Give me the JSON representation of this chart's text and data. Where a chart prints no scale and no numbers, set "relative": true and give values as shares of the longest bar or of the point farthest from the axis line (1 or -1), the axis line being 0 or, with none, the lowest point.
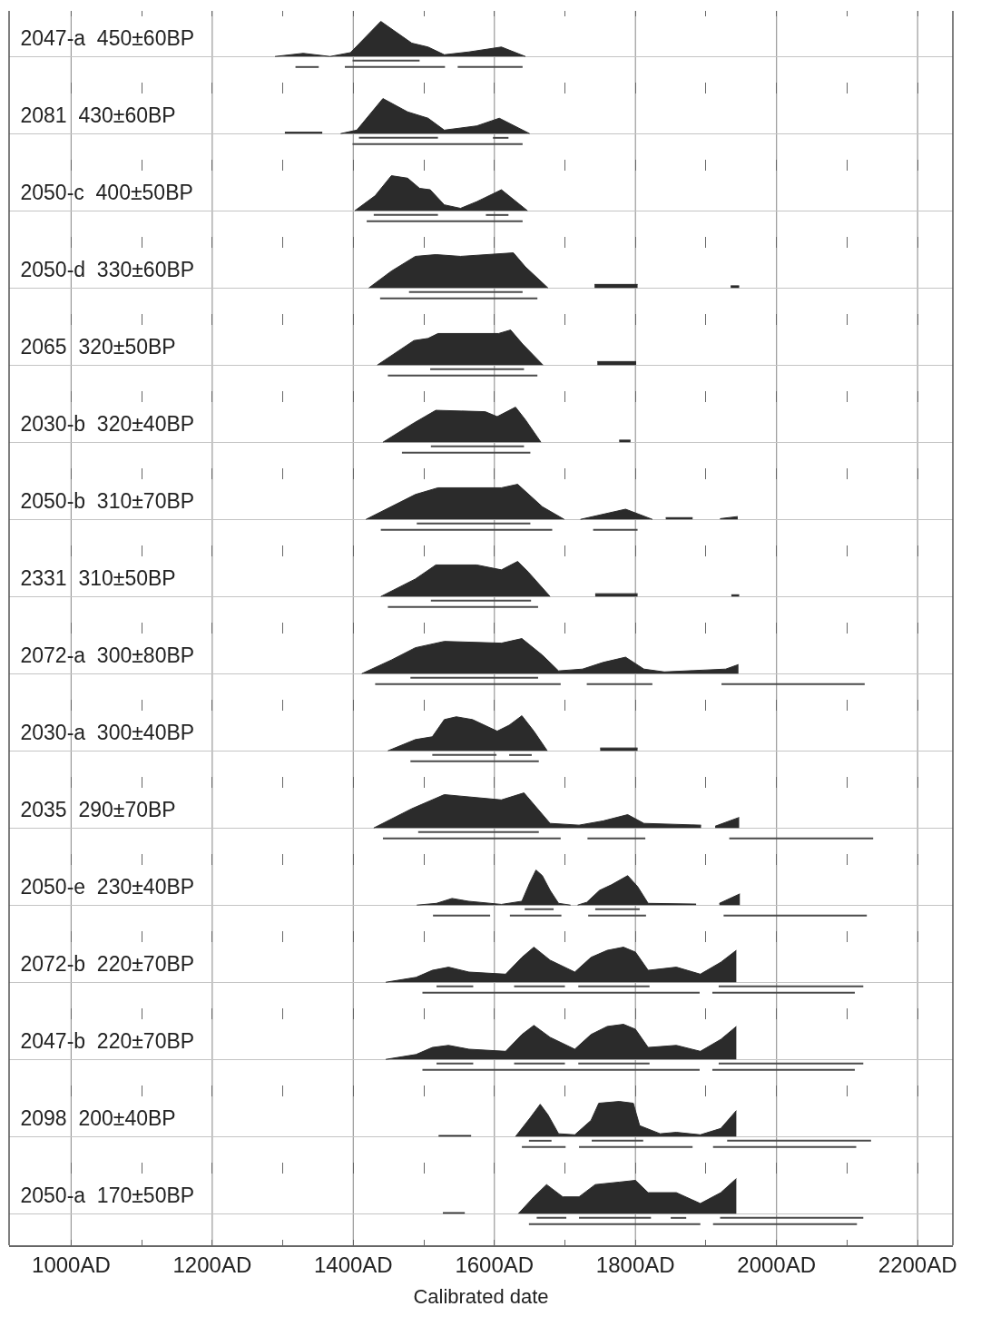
{
  "chart_data": [
    {
      "type": "area",
      "relative": true,
      "title": "2047-a  450±60BP",
      "tick_labels": false,
      "grid": "x",
      "xlim": [
        912,
        2250
      ],
      "xticks": [
        1000,
        {
          "value": 1100,
          "label": null
        },
        1200,
        {
          "value": 1300,
          "label": null
        },
        1400,
        {
          "value": 1500,
          "label": null
        },
        1600,
        {
          "value": 1700,
          "label": null
        },
        1800,
        {
          "value": 1900,
          "label": null
        },
        2000,
        {
          "value": 2100,
          "label": null
        },
        2200
      ],
      "series": [
        {
          "color": "#2b2b2b",
          "x": [
            1289,
            1329,
            1367,
            1396,
            1439,
            1483,
            1506,
            1529,
            1564,
            1610,
            1644
          ],
          "values": [
            0,
            0.09,
            0,
            0.11,
            1,
            0.38,
            0.27,
            0.05,
            0.13,
            0.27,
            0
          ]
        },
        {
          "type": "line",
          "color": "#4a4a4a",
          "x": [
            1399,
            1494
          ],
          "values": [
            -0.12,
            -0.12
          ]
        },
        {
          "type": "line",
          "color": "#4a4a4a",
          "x": [
            1318,
            1351,
            null,
            1388,
            1530,
            null,
            1548,
            1640
          ],
          "values": [
            -0.3,
            -0.3,
            null,
            -0.3,
            -0.3,
            null,
            -0.3,
            -0.3
          ]
        }
      ]
    },
    {
      "type": "area",
      "relative": true,
      "title": "2081  430±60BP",
      "tick_labels": false,
      "grid": "x",
      "xlim": [
        912,
        2250
      ],
      "xticks": [
        1000,
        {
          "value": 1100,
          "label": null
        },
        1200,
        {
          "value": 1300,
          "label": null
        },
        1400,
        {
          "value": 1500,
          "label": null
        },
        1600,
        {
          "value": 1700,
          "label": null
        },
        1800,
        {
          "value": 1900,
          "label": null
        },
        2000,
        {
          "value": 2100,
          "label": null
        },
        2200
      ],
      "series": [
        {
          "color": "#2b2b2b",
          "x": [
            1303,
            1356,
            null,
            1382,
            1405,
            1442,
            1477,
            1506,
            1529,
            1575,
            1607,
            1650
          ],
          "values": [
            0.04,
            0.04,
            null,
            0,
            0.1,
            1,
            0.62,
            0.44,
            0.1,
            0.22,
            0.44,
            0
          ]
        },
        {
          "type": "line",
          "color": "#4a4a4a",
          "x": [
            1408,
            1520,
            null,
            1598,
            1620
          ],
          "values": [
            -0.12,
            -0.12,
            null,
            -0.12,
            -0.12
          ]
        },
        {
          "type": "line",
          "color": "#4a4a4a",
          "x": [
            1399,
            1640
          ],
          "values": [
            -0.3,
            -0.3
          ]
        }
      ]
    },
    {
      "type": "area",
      "relative": true,
      "title": "2050-c  400±50BP",
      "tick_labels": false,
      "grid": "x",
      "xlim": [
        912,
        2250
      ],
      "xticks": [
        1000,
        {
          "value": 1100,
          "label": null
        },
        1200,
        {
          "value": 1300,
          "label": null
        },
        1400,
        {
          "value": 1500,
          "label": null
        },
        1600,
        {
          "value": 1700,
          "label": null
        },
        1800,
        {
          "value": 1900,
          "label": null
        },
        2000,
        {
          "value": 2100,
          "label": null
        },
        2200
      ],
      "series": [
        {
          "color": "#2b2b2b",
          "x": [
            1402,
            1431,
            1454,
            1477,
            1494,
            1509,
            1529,
            1552,
            1575,
            1610,
            1647
          ],
          "values": [
            0,
            0.43,
            1,
            0.93,
            0.64,
            0.6,
            0.17,
            0.07,
            0.26,
            0.6,
            0
          ]
        },
        {
          "type": "line",
          "color": "#4a4a4a",
          "x": [
            1429,
            1520,
            null,
            1588,
            1620
          ],
          "values": [
            -0.12,
            -0.12,
            null,
            -0.12,
            -0.12
          ]
        },
        {
          "type": "line",
          "color": "#4a4a4a",
          "x": [
            1419,
            1640
          ],
          "values": [
            -0.3,
            -0.3
          ]
        }
      ]
    },
    {
      "type": "area",
      "relative": true,
      "title": "2050-d  330±60BP",
      "tick_labels": false,
      "grid": "x",
      "xlim": [
        912,
        2250
      ],
      "xticks": [
        1000,
        {
          "value": 1100,
          "label": null
        },
        1200,
        {
          "value": 1300,
          "label": null
        },
        1400,
        {
          "value": 1500,
          "label": null
        },
        1600,
        {
          "value": 1700,
          "label": null
        },
        1800,
        {
          "value": 1900,
          "label": null
        },
        2000,
        {
          "value": 2100,
          "label": null
        },
        2200
      ],
      "series": [
        {
          "color": "#2b2b2b",
          "x": [
            1422,
            1454,
            1488,
            1517,
            1552,
            1627,
            1644,
            1676,
            null,
            1742,
            1803,
            null,
            1935,
            1947
          ],
          "values": [
            0,
            0.48,
            0.9,
            0.95,
            0.9,
            1,
            0.6,
            0,
            null,
            0.1,
            0.1,
            null,
            0.06,
            0.06
          ]
        },
        {
          "type": "line",
          "color": "#4a4a4a",
          "x": [
            1479,
            1640
          ],
          "values": [
            -0.12,
            -0.12
          ]
        },
        {
          "type": "line",
          "color": "#4a4a4a",
          "x": [
            1438,
            1661
          ],
          "values": [
            -0.3,
            -0.3
          ]
        }
      ]
    },
    {
      "type": "area",
      "relative": true,
      "title": "2065  320±50BP",
      "tick_labels": false,
      "grid": "x",
      "xlim": [
        912,
        2250
      ],
      "xticks": [
        1000,
        {
          "value": 1100,
          "label": null
        },
        1200,
        {
          "value": 1300,
          "label": null
        },
        1400,
        {
          "value": 1500,
          "label": null
        },
        1600,
        {
          "value": 1700,
          "label": null
        },
        1800,
        {
          "value": 1900,
          "label": null
        },
        2000,
        {
          "value": 2100,
          "label": null
        },
        2200
      ],
      "series": [
        {
          "color": "#2b2b2b",
          "x": [
            1434,
            1486,
            1506,
            1520,
            1606,
            1623,
            1640,
            1669,
            null,
            1746,
            1801
          ],
          "values": [
            0,
            0.7,
            0.76,
            0.9,
            0.9,
            1,
            0.6,
            0,
            null,
            0.1,
            0.1
          ]
        },
        {
          "type": "line",
          "color": "#4a4a4a",
          "x": [
            1509,
            1642
          ],
          "values": [
            -0.12,
            -0.12
          ]
        },
        {
          "type": "line",
          "color": "#4a4a4a",
          "x": [
            1449,
            1661
          ],
          "values": [
            -0.3,
            -0.3
          ]
        }
      ]
    },
    {
      "type": "area",
      "relative": true,
      "title": "2030-b  320±40BP",
      "tick_labels": false,
      "grid": "x",
      "xlim": [
        912,
        2250
      ],
      "xticks": [
        1000,
        {
          "value": 1100,
          "label": null
        },
        1200,
        {
          "value": 1300,
          "label": null
        },
        1400,
        {
          "value": 1500,
          "label": null
        },
        1600,
        {
          "value": 1700,
          "label": null
        },
        1800,
        {
          "value": 1900,
          "label": null
        },
        2000,
        {
          "value": 2100,
          "label": null
        },
        2200
      ],
      "series": [
        {
          "color": "#2b2b2b",
          "x": [
            1442,
            1486,
            1517,
            1587,
            1604,
            1630,
            1644,
            1666,
            null,
            1777,
            1793
          ],
          "values": [
            0,
            0.55,
            0.91,
            0.87,
            0.73,
            1,
            0.64,
            0,
            null,
            0.06,
            0.06
          ]
        },
        {
          "type": "line",
          "color": "#4a4a4a",
          "x": [
            1510,
            1642
          ],
          "values": [
            -0.12,
            -0.12
          ]
        },
        {
          "type": "line",
          "color": "#4a4a4a",
          "x": [
            1469,
            1651
          ],
          "values": [
            -0.3,
            -0.3
          ]
        }
      ]
    },
    {
      "type": "area",
      "relative": true,
      "title": "2050-b  310±70BP",
      "tick_labels": false,
      "grid": "x",
      "xlim": [
        912,
        2250
      ],
      "xticks": [
        1000,
        {
          "value": 1100,
          "label": null
        },
        1200,
        {
          "value": 1300,
          "label": null
        },
        1400,
        {
          "value": 1500,
          "label": null
        },
        1600,
        {
          "value": 1700,
          "label": null
        },
        1800,
        {
          "value": 1900,
          "label": null
        },
        2000,
        {
          "value": 2100,
          "label": null
        },
        2200
      ],
      "series": [
        {
          "color": "#2b2b2b",
          "x": [
            1418,
            1488,
            1520,
            1610,
            1633,
            1668,
            1699,
            null,
            1722,
            1786,
            1824,
            null,
            1843,
            1881,
            null,
            1920,
            1945
          ],
          "values": [
            0,
            0.71,
            0.9,
            0.9,
            1,
            0.36,
            0,
            null,
            0,
            0.29,
            0,
            null,
            0.05,
            0.05,
            null,
            0.02,
            0.08
          ]
        },
        {
          "type": "line",
          "color": "#4a4a4a",
          "x": [
            1490,
            1651
          ],
          "values": [
            -0.12,
            -0.12
          ]
        },
        {
          "type": "line",
          "color": "#4a4a4a",
          "x": [
            1439,
            1682,
            null,
            1740,
            1803
          ],
          "values": [
            -0.3,
            -0.3,
            null,
            -0.3,
            -0.3
          ]
        }
      ]
    },
    {
      "type": "area",
      "relative": true,
      "title": "2331  310±50BP",
      "tick_labels": false,
      "grid": "x",
      "xlim": [
        912,
        2250
      ],
      "xticks": [
        1000,
        {
          "value": 1100,
          "label": null
        },
        1200,
        {
          "value": 1300,
          "label": null
        },
        1400,
        {
          "value": 1500,
          "label": null
        },
        1600,
        {
          "value": 1700,
          "label": null
        },
        1800,
        {
          "value": 1900,
          "label": null
        },
        2000,
        {
          "value": 2100,
          "label": null
        },
        2200
      ],
      "series": [
        {
          "color": "#2b2b2b",
          "x": [
            1439,
            1488,
            1517,
            1575,
            1610,
            1633,
            1648,
            1679,
            null,
            1743,
            1803,
            null,
            1936,
            1947
          ],
          "values": [
            0,
            0.5,
            0.9,
            0.9,
            0.76,
            1,
            0.7,
            0,
            null,
            0.08,
            0.08,
            null,
            0.05,
            0.05
          ]
        },
        {
          "type": "line",
          "color": "#4a4a4a",
          "x": [
            1510,
            1652
          ],
          "values": [
            -0.12,
            -0.12
          ]
        },
        {
          "type": "line",
          "color": "#4a4a4a",
          "x": [
            1449,
            1662
          ],
          "values": [
            -0.3,
            -0.3
          ]
        }
      ]
    },
    {
      "type": "area",
      "relative": true,
      "title": "2072-a  300±80BP",
      "tick_labels": false,
      "grid": "x",
      "xlim": [
        912,
        2250
      ],
      "xticks": [
        1000,
        {
          "value": 1100,
          "label": null
        },
        1200,
        {
          "value": 1300,
          "label": null
        },
        1400,
        {
          "value": 1500,
          "label": null
        },
        1600,
        {
          "value": 1700,
          "label": null
        },
        1800,
        {
          "value": 1900,
          "label": null
        },
        2000,
        {
          "value": 2100,
          "label": null
        },
        2200
      ],
      "series": [
        {
          "color": "#2b2b2b",
          "x": [
            1412,
            1454,
            1488,
            1529,
            1610,
            1639,
            1668,
            1691,
            1725,
            1754,
            1786,
            1812,
            1841,
            1928,
            1946
          ],
          "values": [
            0,
            0.39,
            0.74,
            0.92,
            0.87,
            1,
            0.53,
            0.08,
            0.13,
            0.32,
            0.47,
            0.13,
            0.05,
            0.13,
            0.26
          ]
        },
        {
          "type": "line",
          "color": "#4a4a4a",
          "x": [
            1481,
            1662
          ],
          "values": [
            -0.12,
            -0.12
          ]
        },
        {
          "type": "line",
          "color": "#4a4a4a",
          "x": [
            1431,
            1694,
            null,
            1731,
            1824,
            null,
            1922,
            2125
          ],
          "values": [
            -0.3,
            -0.3,
            null,
            -0.3,
            -0.3,
            null,
            -0.3,
            -0.3
          ]
        }
      ]
    },
    {
      "type": "area",
      "relative": true,
      "title": "2030-a  300±40BP",
      "tick_labels": false,
      "grid": "x",
      "xlim": [
        912,
        2250
      ],
      "xticks": [
        1000,
        {
          "value": 1100,
          "label": null
        },
        1200,
        {
          "value": 1300,
          "label": null
        },
        1400,
        {
          "value": 1500,
          "label": null
        },
        1600,
        {
          "value": 1700,
          "label": null
        },
        1800,
        {
          "value": 1900,
          "label": null
        },
        2000,
        {
          "value": 2100,
          "label": null
        },
        2200
      ],
      "series": [
        {
          "color": "#2b2b2b",
          "x": [
            1449,
            1488,
            1512,
            1529,
            1546,
            1569,
            1604,
            1621,
            1639,
            1656,
            1675,
            null,
            1750,
            1803
          ],
          "values": [
            0,
            0.32,
            0.4,
            0.89,
            0.97,
            0.89,
            0.56,
            0.73,
            1,
            0.56,
            0,
            null,
            0.08,
            0.08
          ]
        },
        {
          "type": "line",
          "color": "#4a4a4a",
          "x": [
            1512,
            1603,
            null,
            1621,
            1653
          ],
          "values": [
            -0.12,
            -0.12,
            null,
            -0.12,
            -0.12
          ]
        },
        {
          "type": "line",
          "color": "#4a4a4a",
          "x": [
            1481,
            1663
          ],
          "values": [
            -0.3,
            -0.3
          ]
        }
      ]
    },
    {
      "type": "area",
      "relative": true,
      "title": "2035  290±70BP",
      "tick_labels": false,
      "grid": "x",
      "xlim": [
        912,
        2250
      ],
      "xticks": [
        1000,
        {
          "value": 1100,
          "label": null
        },
        1200,
        {
          "value": 1300,
          "label": null
        },
        1400,
        {
          "value": 1500,
          "label": null
        },
        1600,
        {
          "value": 1700,
          "label": null
        },
        1800,
        {
          "value": 1900,
          "label": null
        },
        2000,
        {
          "value": 2100,
          "label": null
        },
        2200
      ],
      "series": [
        {
          "color": "#2b2b2b",
          "x": [
            1429,
            1483,
            1529,
            1610,
            1642,
            1679,
            1720,
            1754,
            1789,
            1812,
            1893,
            null,
            1913,
            1947
          ],
          "values": [
            0,
            0.55,
            0.95,
            0.8,
            1,
            0.13,
            0.08,
            0.2,
            0.38,
            0.13,
            0.08,
            null,
            0.05,
            0.3
          ]
        },
        {
          "type": "line",
          "color": "#4a4a4a",
          "x": [
            1492,
            1663
          ],
          "values": [
            -0.12,
            -0.12
          ]
        },
        {
          "type": "line",
          "color": "#4a4a4a",
          "x": [
            1442,
            1694,
            null,
            1732,
            1814,
            null,
            1933,
            2137
          ],
          "values": [
            -0.3,
            -0.3,
            null,
            -0.3,
            -0.3,
            null,
            -0.3,
            -0.3
          ]
        }
      ]
    },
    {
      "type": "area",
      "relative": true,
      "title": "2050-e  230±40BP",
      "tick_labels": false,
      "grid": "x",
      "xlim": [
        912,
        2250
      ],
      "xticks": [
        1000,
        {
          "value": 1100,
          "label": null
        },
        1200,
        {
          "value": 1300,
          "label": null
        },
        1400,
        {
          "value": 1500,
          "label": null
        },
        1600,
        {
          "value": 1700,
          "label": null
        },
        1800,
        {
          "value": 1900,
          "label": null
        },
        2000,
        {
          "value": 2100,
          "label": null
        },
        2200
      ],
      "series": [
        {
          "color": "#2b2b2b",
          "x": [
            1490,
            1518,
            1540,
            1563,
            1610,
            1639,
            1650,
            1659,
            1668,
            1679,
            1691,
            1708,
            null,
            1718,
            1731,
            1749,
            1766,
            1789,
            1803,
            1818,
            1886,
            null,
            1919,
            1948
          ],
          "values": [
            0,
            0.05,
            0.19,
            0.11,
            0.02,
            0.11,
            0.63,
            1,
            0.84,
            0.42,
            0.05,
            0,
            null,
            0,
            0.08,
            0.42,
            0.58,
            0.84,
            0.53,
            0.05,
            0.03,
            null,
            0.05,
            0.32
          ]
        },
        {
          "type": "line",
          "color": "#4a4a4a",
          "x": [
            1643,
            1684,
            null,
            1743,
            1806
          ],
          "values": [
            -0.12,
            -0.12,
            null,
            -0.12,
            -0.12
          ]
        },
        {
          "type": "line",
          "color": "#4a4a4a",
          "x": [
            1513,
            1594,
            null,
            1622,
            1695,
            null,
            1733,
            1815,
            null,
            1925,
            2128
          ],
          "values": [
            -0.3,
            -0.3,
            null,
            -0.3,
            -0.3,
            null,
            -0.3,
            -0.3,
            null,
            -0.3,
            -0.3
          ]
        }
      ]
    },
    {
      "type": "area",
      "relative": true,
      "title": "2072-b  220±70BP",
      "tick_labels": false,
      "grid": "x",
      "xlim": [
        912,
        2250
      ],
      "xticks": [
        1000,
        {
          "value": 1100,
          "label": null
        },
        1200,
        {
          "value": 1300,
          "label": null
        },
        1400,
        {
          "value": 1500,
          "label": null
        },
        1600,
        {
          "value": 1700,
          "label": null
        },
        1800,
        {
          "value": 1900,
          "label": null
        },
        2000,
        {
          "value": 2100,
          "label": null
        },
        2200
      ],
      "series": [
        {
          "color": "#2b2b2b",
          "x": [
            1446,
            1489,
            1512,
            1535,
            1564,
            1616,
            1639,
            1656,
            1679,
            1714,
            1737,
            1760,
            1783,
            1800,
            1818,
            1858,
            1892,
            1921,
            1943
          ],
          "values": [
            0,
            0.14,
            0.34,
            0.43,
            0.29,
            0.23,
            0.71,
            1,
            0.63,
            0.29,
            0.71,
            0.91,
            1,
            0.86,
            0.34,
            0.43,
            0.23,
            0.57,
            0.91
          ]
        },
        {
          "type": "line",
          "color": "#4a4a4a",
          "x": [
            1518,
            1570,
            null,
            1628,
            1700,
            null,
            1719,
            1820,
            null,
            1918,
            2123
          ],
          "values": [
            -0.12,
            -0.12,
            null,
            -0.12,
            -0.12,
            null,
            -0.12,
            -0.12,
            null,
            -0.12,
            -0.12
          ]
        },
        {
          "type": "line",
          "color": "#4a4a4a",
          "x": [
            1498,
            1891,
            null,
            1909,
            2111
          ],
          "values": [
            -0.3,
            -0.3,
            null,
            -0.3,
            -0.3
          ]
        }
      ]
    },
    {
      "type": "area",
      "relative": true,
      "title": "2047-b  220±70BP",
      "tick_labels": false,
      "grid": "x",
      "xlim": [
        912,
        2250
      ],
      "xticks": [
        1000,
        {
          "value": 1100,
          "label": null
        },
        1200,
        {
          "value": 1300,
          "label": null
        },
        1400,
        {
          "value": 1500,
          "label": null
        },
        1600,
        {
          "value": 1700,
          "label": null
        },
        1800,
        {
          "value": 1900,
          "label": null
        },
        2000,
        {
          "value": 2100,
          "label": null
        },
        2200
      ],
      "series": [
        {
          "color": "#2b2b2b",
          "x": [
            1446,
            1489,
            1512,
            1535,
            1564,
            1616,
            1639,
            1656,
            1679,
            1714,
            1737,
            1760,
            1783,
            1800,
            1818,
            1858,
            1892,
            1921,
            1943
          ],
          "values": [
            0,
            0.14,
            0.34,
            0.4,
            0.29,
            0.23,
            0.71,
            0.97,
            0.63,
            0.29,
            0.71,
            0.94,
            1,
            0.86,
            0.34,
            0.4,
            0.23,
            0.57,
            0.94
          ]
        },
        {
          "type": "line",
          "color": "#4a4a4a",
          "x": [
            1518,
            1570,
            null,
            1628,
            1700,
            null,
            1719,
            1820,
            null,
            1918,
            2123
          ],
          "values": [
            -0.12,
            -0.12,
            null,
            -0.12,
            -0.12,
            null,
            -0.12,
            -0.12,
            null,
            -0.12,
            -0.12
          ]
        },
        {
          "type": "line",
          "color": "#4a4a4a",
          "x": [
            1498,
            1891,
            null,
            1909,
            2111
          ],
          "values": [
            -0.3,
            -0.3,
            null,
            -0.3,
            -0.3
          ]
        }
      ]
    },
    {
      "type": "area",
      "relative": true,
      "title": "2098  200±40BP",
      "tick_labels": false,
      "grid": "x",
      "xlim": [
        912,
        2250
      ],
      "xticks": [
        1000,
        {
          "value": 1100,
          "label": null
        },
        1200,
        {
          "value": 1300,
          "label": null
        },
        1400,
        {
          "value": 1500,
          "label": null
        },
        1600,
        {
          "value": 1700,
          "label": null
        },
        1800,
        {
          "value": 1900,
          "label": null
        },
        2000,
        {
          "value": 2100,
          "label": null
        },
        2200
      ],
      "series": [
        {
          "color": "#2b2b2b",
          "x": [
            1521,
            1567,
            null,
            1630,
            1651,
            1665,
            1676,
            1691,
            1714,
            1737,
            1748,
            1777,
            1797,
            1806,
            1835,
            1858,
            1892,
            1921,
            1943
          ],
          "values": [
            0.03,
            0.03,
            null,
            0,
            0.54,
            0.92,
            0.62,
            0.08,
            0.05,
            0.46,
            0.95,
            1,
            0.95,
            0.31,
            0.08,
            0.12,
            0.05,
            0.23,
            0.74
          ]
        },
        {
          "type": "line",
          "color": "#4a4a4a",
          "x": [
            1649,
            1681,
            null,
            1738,
            1811,
            null,
            1930,
            2134
          ],
          "values": [
            -0.12,
            -0.12,
            null,
            -0.12,
            -0.12,
            null,
            -0.12,
            -0.12
          ]
        },
        {
          "type": "line",
          "color": "#4a4a4a",
          "x": [
            1639,
            1701,
            null,
            1720,
            1881,
            null,
            1910,
            2113
          ],
          "values": [
            -0.3,
            -0.3,
            null,
            -0.3,
            -0.3,
            null,
            -0.3,
            -0.3
          ]
        }
      ]
    },
    {
      "type": "area",
      "relative": true,
      "title": "2050-a  170±50BP",
      "xlabel": "Calibrated date",
      "tick_labels": "x",
      "grid": "x",
      "xlim": [
        912,
        2250
      ],
      "xticks": [
        {
          "value": 1000,
          "label": "1000AD"
        },
        {
          "value": 1100,
          "label": null
        },
        {
          "value": 1200,
          "label": "1200AD"
        },
        {
          "value": 1300,
          "label": null
        },
        {
          "value": 1400,
          "label": "1400AD"
        },
        {
          "value": 1500,
          "label": null
        },
        {
          "value": 1600,
          "label": "1600AD"
        },
        {
          "value": 1700,
          "label": null
        },
        {
          "value": 1800,
          "label": "1800AD"
        },
        {
          "value": 1900,
          "label": null
        },
        {
          "value": 2000,
          "label": "2000AD"
        },
        {
          "value": 2100,
          "label": null
        },
        {
          "value": 2200,
          "label": "2200AD"
        }
      ],
      "series": [
        {
          "color": "#2b2b2b",
          "x": [
            1527,
            1558,
            null,
            1634,
            1656,
            1674,
            1697,
            1720,
            1743,
            1777,
            1800,
            1818,
            1858,
            1892,
            1921,
            1943
          ],
          "values": [
            0.03,
            0.03,
            null,
            0,
            0.48,
            0.83,
            0.48,
            0.48,
            0.83,
            0.9,
            0.95,
            0.6,
            0.6,
            0.29,
            0.6,
            1
          ]
        },
        {
          "type": "line",
          "color": "#4a4a4a",
          "x": [
            1660,
            1702,
            null,
            1720,
            1822,
            null,
            1850,
            1872,
            null,
            1920,
            2123
          ],
          "values": [
            -0.12,
            -0.12,
            null,
            -0.12,
            -0.12,
            null,
            -0.12,
            -0.12,
            null,
            -0.12,
            -0.12
          ]
        },
        {
          "type": "line",
          "color": "#4a4a4a",
          "x": [
            1649,
            1892,
            null,
            1910,
            2114
          ],
          "values": [
            -0.3,
            -0.3,
            null,
            -0.3,
            -0.3
          ]
        }
      ]
    }
  ]
}
